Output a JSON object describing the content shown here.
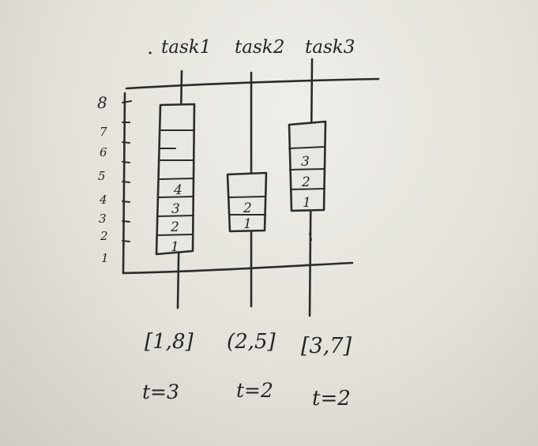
{
  "y_axis": {
    "ticks": [
      "1",
      "2",
      "3",
      "4",
      "5",
      "6",
      "7",
      "8"
    ]
  },
  "tasks": [
    {
      "name": "task1",
      "interval": "[1,8]",
      "t_label": "t=3",
      "boxes": [
        "",
        "",
        "",
        "",
        "4",
        "3",
        "2",
        "1"
      ]
    },
    {
      "name": "task2",
      "interval": "(2,5]",
      "t_label": "t=2",
      "boxes": [
        "2",
        "1"
      ]
    },
    {
      "name": "task3",
      "interval": "[3,7]",
      "t_label": "t=2",
      "boxes": [
        "",
        "3",
        "2",
        "1"
      ]
    }
  ]
}
